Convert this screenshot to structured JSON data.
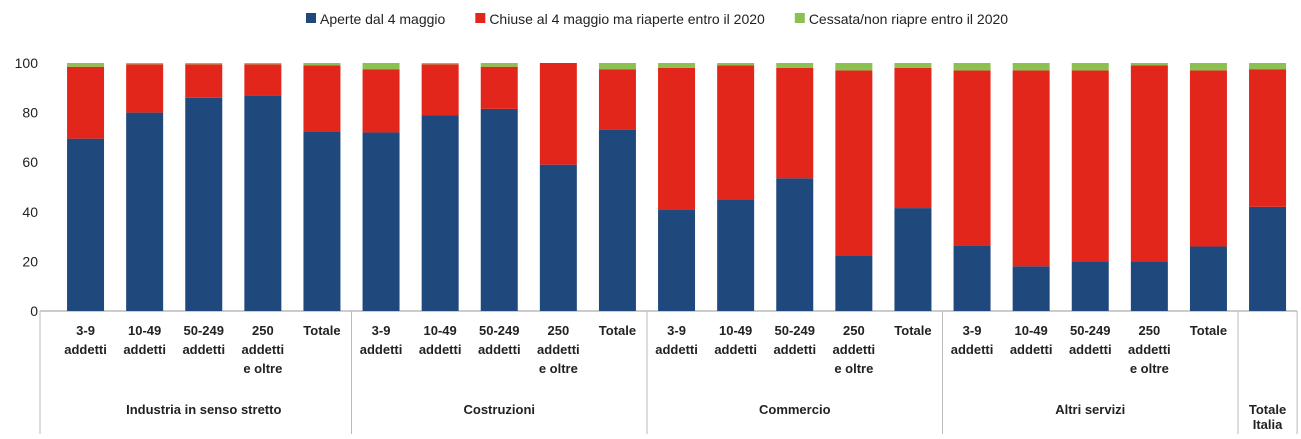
{
  "chart_data": {
    "type": "stacked_bar",
    "groups": [
      {
        "label": [
          "Industria in senso stretto"
        ],
        "categories": [
          [
            "3-9",
            "addetti"
          ],
          [
            "10-49",
            "addetti"
          ],
          [
            "50-249",
            "addetti"
          ],
          [
            "250",
            "addetti",
            "e oltre"
          ],
          [
            "Totale"
          ]
        ]
      },
      {
        "label": [
          "Costruzioni"
        ],
        "categories": [
          [
            "3-9",
            "addetti"
          ],
          [
            "10-49",
            "addetti"
          ],
          [
            "50-249",
            "addetti"
          ],
          [
            "250",
            "addetti",
            "e oltre"
          ],
          [
            "Totale"
          ]
        ]
      },
      {
        "label": [
          "Commercio"
        ],
        "categories": [
          [
            "3-9",
            "addetti"
          ],
          [
            "10-49",
            "addetti"
          ],
          [
            "50-249",
            "addetti"
          ],
          [
            "250",
            "addetti",
            "e oltre"
          ],
          [
            "Totale"
          ]
        ]
      },
      {
        "label": [
          "Altri servizi"
        ],
        "categories": [
          [
            "3-9",
            "addetti"
          ],
          [
            "10-49",
            "addetti"
          ],
          [
            "50-249",
            "addetti"
          ],
          [
            "250",
            "addetti",
            "e oltre"
          ],
          [
            "Totale"
          ]
        ]
      },
      {
        "label": [
          "Totale",
          "Italia"
        ],
        "categories": [
          null
        ]
      }
    ],
    "series": [
      {
        "name": "Aperte dal 4 maggio",
        "color": "#1f497d",
        "values": [
          69.5,
          80,
          86,
          87,
          72.5,
          72,
          79,
          81.5,
          59,
          73,
          41,
          45,
          53.5,
          22.5,
          41.5,
          26.5,
          18,
          20,
          20,
          26,
          42
        ]
      },
      {
        "name": "Chiuse al 4 maggio ma riaperte entro il 2020",
        "color": "#e3261b",
        "values": [
          29,
          19.5,
          13.5,
          12.5,
          26.5,
          25.5,
          20.5,
          17,
          41,
          24.5,
          57,
          54,
          44.5,
          74.5,
          56.5,
          70.5,
          79,
          77,
          79,
          71,
          55.5
        ]
      },
      {
        "name": "Cessata/non riapre entro il 2020",
        "color": "#8cc152",
        "values": [
          1.5,
          0.5,
          0.5,
          0.5,
          1,
          2.5,
          0.5,
          1.5,
          0,
          2.5,
          2,
          1,
          2,
          3,
          2,
          3,
          3,
          3,
          1,
          3,
          2.5
        ]
      }
    ],
    "ylim": [
      0,
      100
    ],
    "yticks": [
      0,
      20,
      40,
      60,
      80,
      100
    ]
  }
}
